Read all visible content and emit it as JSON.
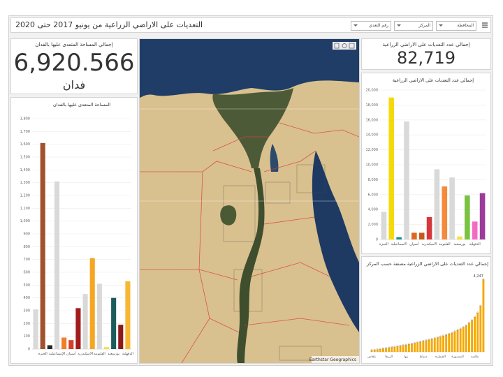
{
  "header": {
    "title": "التعديات على الاراضي الزراعية من يونيو 2017 حتى 2020"
  },
  "filters": [
    "المحافظة",
    "المركز",
    "رقم التعدي"
  ],
  "kpis": [
    {
      "title": "إجمالي المساحة المتعدى عليها بالفدان",
      "value": "6,920.566",
      "unit": "فدان"
    },
    {
      "title": "إجمالي عدد التعديات على الاراضي الزراعية",
      "value": "82,719"
    }
  ],
  "map": {
    "attribution": "Earthstar Geographics"
  },
  "chart_data": [
    {
      "type": "bar",
      "title": "المساحة المتعدى عليها بالفدان",
      "categories": [
        null,
        "الجيزة",
        null,
        "الإسماعيلية",
        null,
        "أسوان",
        null,
        "الاسكندرية",
        null,
        "القليوبية",
        null,
        "بورسعيد",
        null,
        "الدقهلية"
      ],
      "values": [
        310,
        1610,
        30,
        1310,
        90,
        70,
        320,
        430,
        710,
        510,
        15,
        400,
        190,
        530
      ],
      "colors": [
        "#d9d9d9",
        "#a0522d",
        "#1f2a2a",
        "#d9d9d9",
        "#f07f2a",
        "#d33f2a",
        "#a31c1c",
        "#d9d9d9",
        "#f5a623",
        "#d9d9d9",
        "#f7e03c",
        "#1d5c5c",
        "#8b1a1a",
        "#f7b733"
      ],
      "ylim": [
        0,
        1800
      ],
      "yticks": [
        0,
        100,
        200,
        300,
        400,
        500,
        600,
        700,
        800,
        900,
        {
          "value": 1000,
          "label": "1,000"
        },
        {
          "value": 1100,
          "label": "1,100"
        },
        {
          "value": 1200,
          "label": "1,200"
        },
        {
          "value": 1300,
          "label": "1,300"
        },
        {
          "value": 1400,
          "label": "1,400"
        },
        {
          "value": 1500,
          "label": "1,500"
        },
        {
          "value": 1600,
          "label": "1,600"
        },
        {
          "value": 1700,
          "label": "1,700"
        },
        {
          "value": 1800,
          "label": "1,800"
        }
      ],
      "grid": true
    },
    {
      "type": "bar",
      "title": "إجمالي عدد التعديات على الاراضي الزراعية",
      "categories": [
        "الجيزة",
        null,
        "الاسماعيلية",
        null,
        "أسوان",
        null,
        "الاسكندرية",
        null,
        "القليوبية",
        null,
        "بورسعيد",
        null,
        "الدقهلية",
        null
      ],
      "values": [
        3700,
        19000,
        300,
        15800,
        900,
        900,
        3000,
        9400,
        7100,
        8300,
        400,
        5900,
        2400,
        6200
      ],
      "colors": [
        "#d9d9d9",
        "#f5d90a",
        "#1a8c8c",
        "#d9d9d9",
        "#e0661f",
        "#c45a1a",
        "#d6373a",
        "#d9d9d9",
        "#f58a3a",
        "#d9d9d9",
        "#f7e03c",
        "#7cc242",
        "#f36cc4",
        "#9b3c9b"
      ],
      "ylim": [
        0,
        20000
      ],
      "yticks": [
        0,
        {
          "value": 2000,
          "label": "2,000"
        },
        {
          "value": 4000,
          "label": "4,000"
        },
        {
          "value": 6000,
          "label": "6,000"
        },
        {
          "value": 8000,
          "label": "8,000"
        },
        {
          "value": 10000,
          "label": "10,000"
        },
        {
          "value": 12000,
          "label": "12,000"
        },
        {
          "value": 14000,
          "label": "14,000"
        },
        {
          "value": 16000,
          "label": "16,000"
        },
        {
          "value": 18000,
          "label": "18,000"
        },
        {
          "value": 20000,
          "label": "20,000"
        }
      ],
      "grid": true
    },
    {
      "type": "bar",
      "title": "إجمالي عدد التعديات على الاراضي الزراعية مصنفة حسب المركز",
      "categories": [
        "بلقاس",
        null,
        null,
        null,
        null,
        null,
        "الزرقا",
        null,
        null,
        null,
        null,
        null,
        "بنها",
        null,
        null,
        null,
        null,
        null,
        "دمياط",
        null,
        null,
        null,
        null,
        null,
        "القنطرة",
        null,
        null,
        null,
        null,
        null,
        "المنصورة",
        null,
        null,
        null,
        null,
        null,
        "طاميه",
        null,
        null,
        null
      ],
      "values": [
        100,
        120,
        150,
        170,
        200,
        220,
        250,
        280,
        300,
        330,
        360,
        390,
        420,
        450,
        480,
        520,
        560,
        600,
        640,
        680,
        720,
        760,
        800,
        850,
        900,
        950,
        1000,
        1060,
        1120,
        1200,
        1280,
        1360,
        1450,
        1550,
        1700,
        1850,
        2050,
        2300,
        2700,
        4247
      ],
      "value_labels": [
        null,
        null,
        null,
        null,
        null,
        null,
        null,
        null,
        null,
        null,
        null,
        null,
        null,
        null,
        null,
        null,
        null,
        null,
        null,
        null,
        null,
        null,
        null,
        null,
        null,
        null,
        null,
        null,
        null,
        null,
        null,
        null,
        null,
        null,
        null,
        null,
        null,
        null,
        null,
        "4,247"
      ],
      "color": "#f5a800",
      "ylim": [
        0,
        4500
      ],
      "grid": false
    }
  ]
}
